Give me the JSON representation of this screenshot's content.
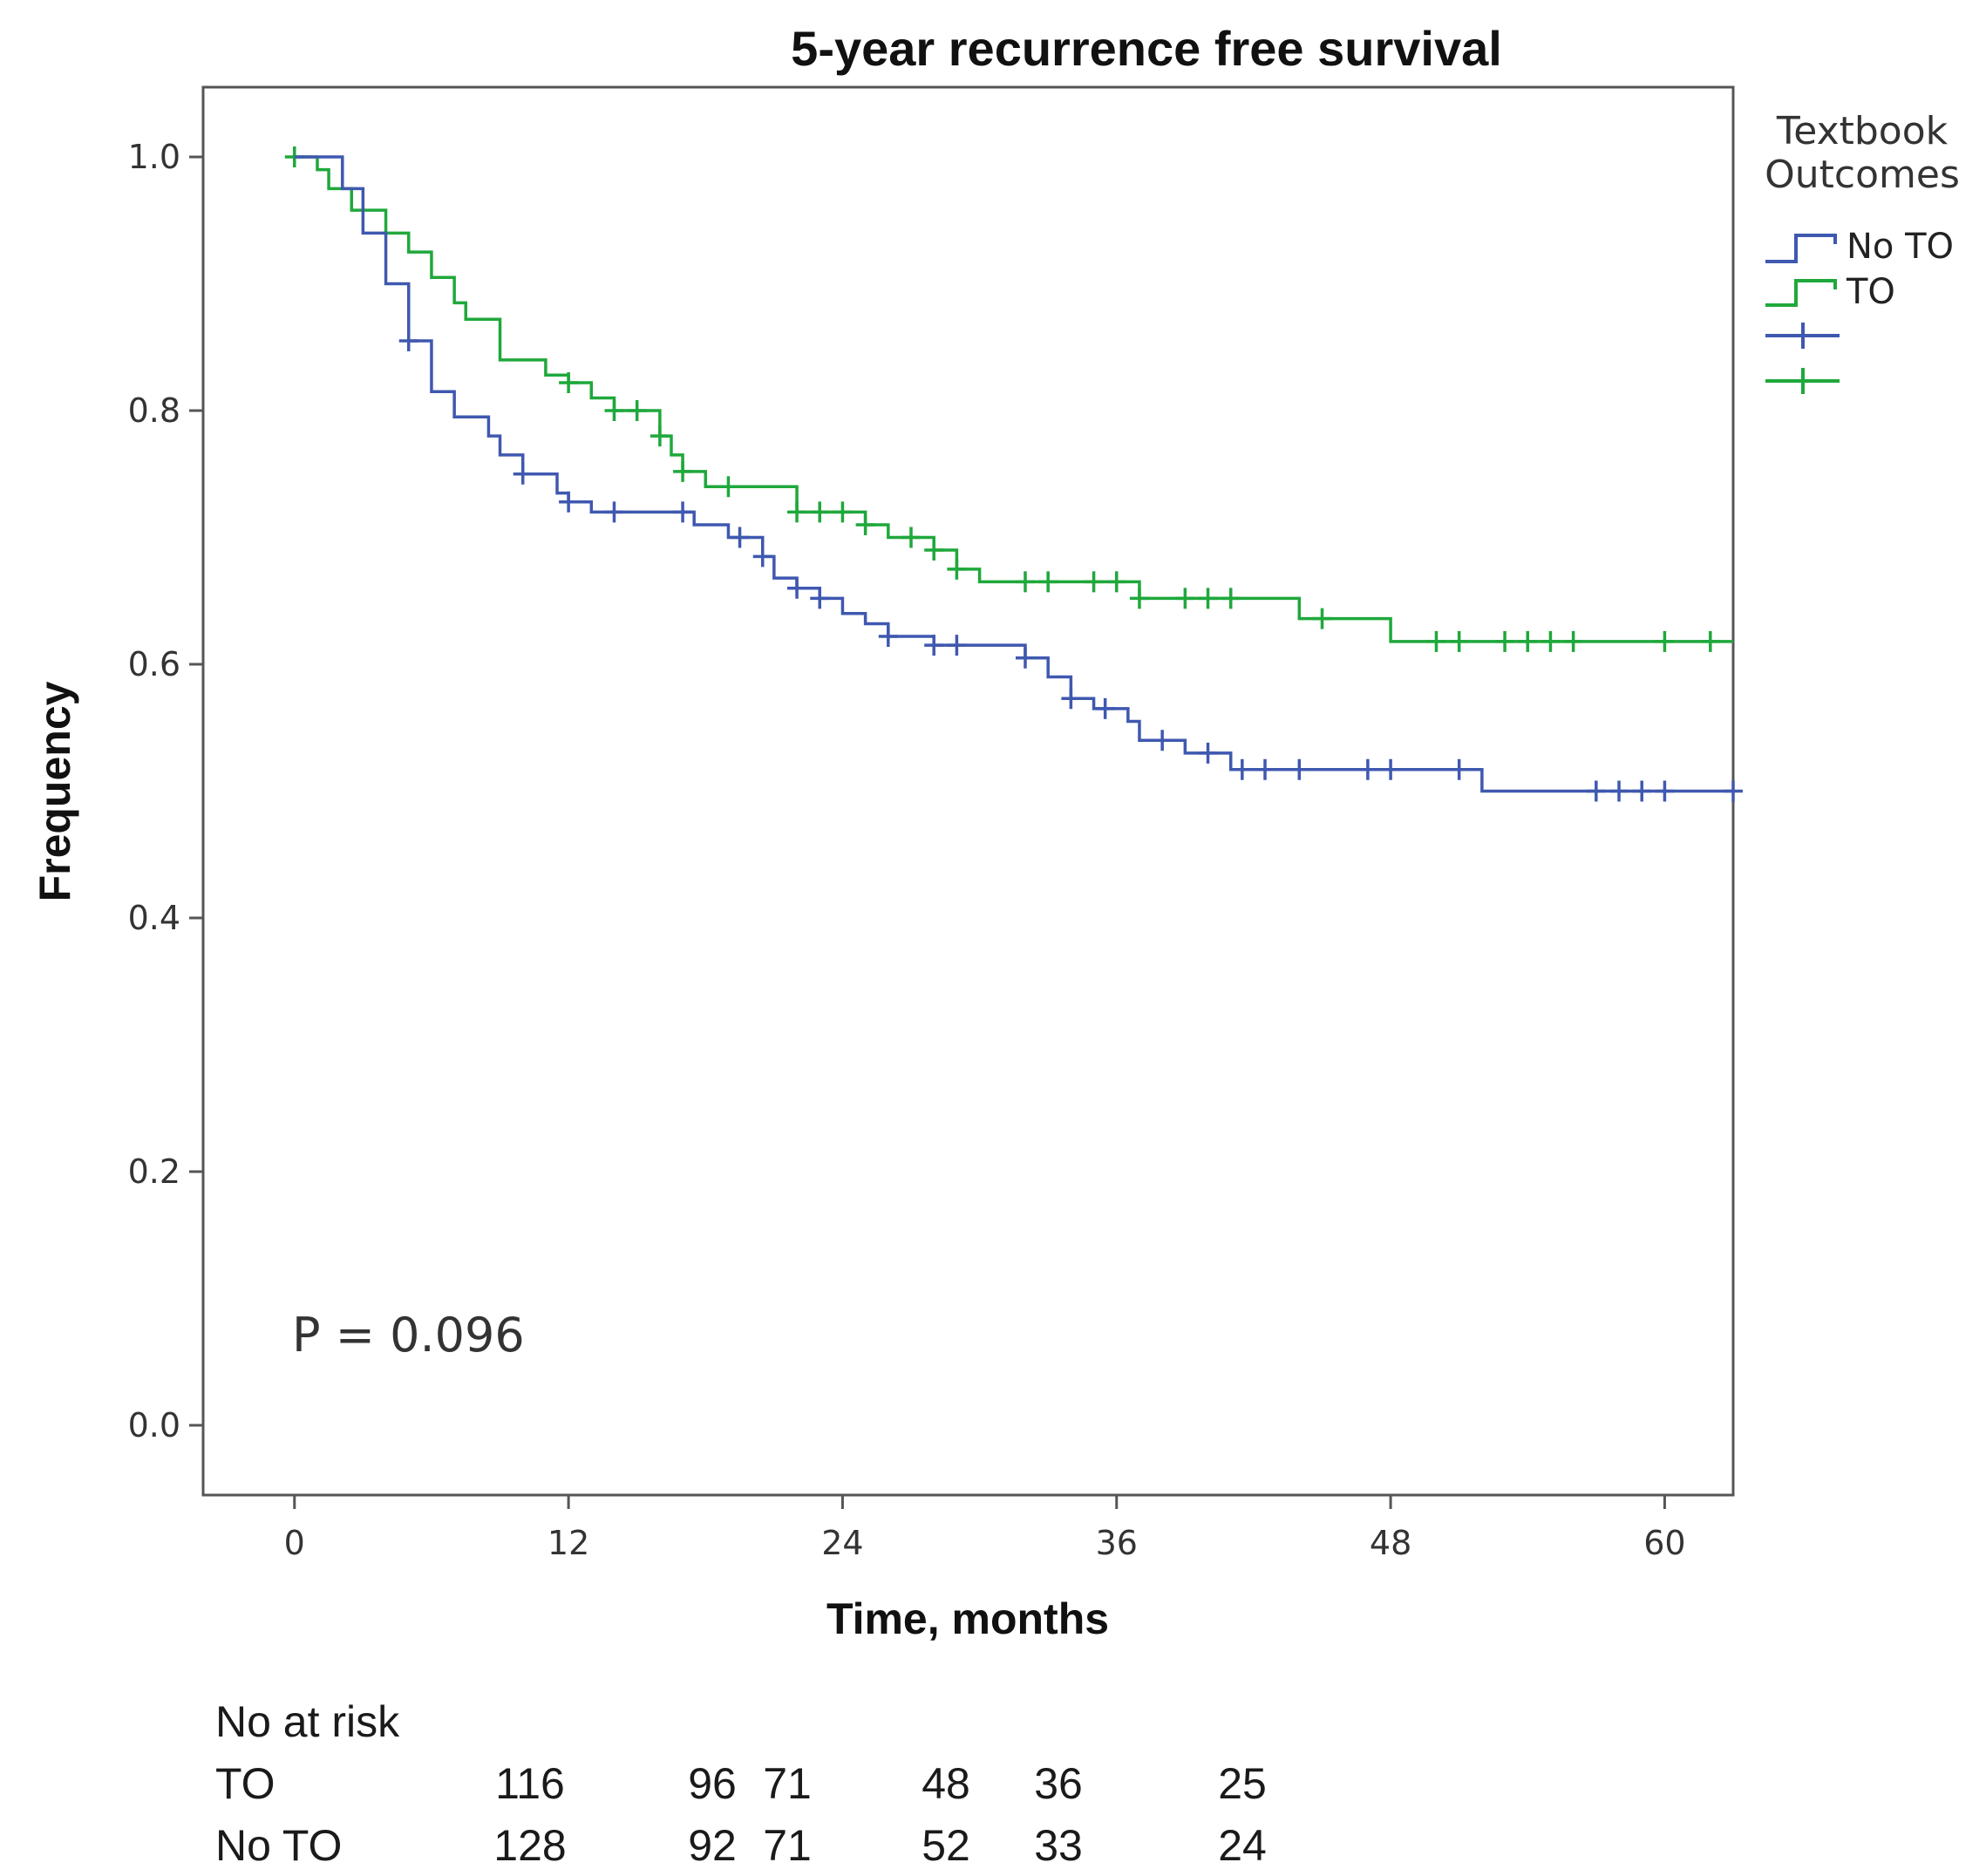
{
  "chart_data": {
    "type": "line",
    "subtype": "kaplan-meier step curves",
    "title": "5-year recurrence free survival",
    "xlabel": "Time, months",
    "ylabel": "Frequency",
    "xlim": [
      -4,
      63
    ],
    "ylim": [
      -0.055,
      1.055
    ],
    "xticks": [
      0,
      12,
      24,
      36,
      48,
      60
    ],
    "yticks": [
      0.0,
      0.2,
      0.4,
      0.6,
      0.8,
      1.0
    ],
    "xtick_labels": [
      "0",
      "12",
      "24",
      "36",
      "48",
      "60"
    ],
    "ytick_labels": [
      "0.0",
      "0.2",
      "0.4",
      "0.6",
      "0.8",
      "1.0"
    ],
    "legend": {
      "title_lines": [
        "Textbook",
        "Outcomes"
      ],
      "position": "right",
      "entries": [
        "No TO",
        "TO",
        "",
        ""
      ]
    },
    "annotation": "P = 0.096",
    "series": [
      {
        "name": "No TO",
        "color": "#3f58b0",
        "steps": [
          [
            0,
            1.0
          ],
          [
            2.1,
            0.975
          ],
          [
            3,
            0.94
          ],
          [
            4,
            0.9
          ],
          [
            5,
            0.855
          ],
          [
            6,
            0.815
          ],
          [
            7,
            0.795
          ],
          [
            8.5,
            0.78
          ],
          [
            9,
            0.765
          ],
          [
            10,
            0.75
          ],
          [
            11.5,
            0.735
          ],
          [
            12,
            0.728
          ],
          [
            13,
            0.72
          ],
          [
            17.5,
            0.71
          ],
          [
            19,
            0.7
          ],
          [
            20.5,
            0.685
          ],
          [
            21,
            0.668
          ],
          [
            22,
            0.66
          ],
          [
            23,
            0.652
          ],
          [
            24,
            0.64
          ],
          [
            25,
            0.632
          ],
          [
            26,
            0.622
          ],
          [
            28,
            0.615
          ],
          [
            32,
            0.605
          ],
          [
            33,
            0.59
          ],
          [
            34,
            0.573
          ],
          [
            35,
            0.565
          ],
          [
            36.5,
            0.555
          ],
          [
            37,
            0.54
          ],
          [
            39,
            0.53
          ],
          [
            41,
            0.517
          ],
          [
            52,
            0.5
          ],
          [
            63,
            0.5
          ]
        ],
        "censored": [
          5,
          10,
          12,
          14,
          17,
          19.5,
          20.5,
          22,
          23,
          26,
          28,
          29,
          32,
          34,
          35.5,
          38,
          40,
          41.5,
          42.5,
          44,
          47,
          48,
          51,
          57,
          58,
          59,
          60,
          63
        ]
      },
      {
        "name": "TO",
        "color": "#1fa83b",
        "steps": [
          [
            0,
            1.0
          ],
          [
            1,
            0.99
          ],
          [
            1.5,
            0.975
          ],
          [
            2.5,
            0.958
          ],
          [
            4,
            0.94
          ],
          [
            5,
            0.925
          ],
          [
            6,
            0.905
          ],
          [
            7,
            0.885
          ],
          [
            7.5,
            0.872
          ],
          [
            9,
            0.86
          ],
          [
            9,
            0.84
          ],
          [
            11,
            0.828
          ],
          [
            12,
            0.822
          ],
          [
            13,
            0.81
          ],
          [
            14,
            0.8
          ],
          [
            16,
            0.78
          ],
          [
            16.5,
            0.765
          ],
          [
            17,
            0.752
          ],
          [
            18,
            0.74
          ],
          [
            22,
            0.72
          ],
          [
            25,
            0.71
          ],
          [
            26,
            0.7
          ],
          [
            28,
            0.69
          ],
          [
            29,
            0.675
          ],
          [
            30,
            0.665
          ],
          [
            37,
            0.652
          ],
          [
            44,
            0.636
          ],
          [
            48,
            0.618
          ],
          [
            63,
            0.618
          ]
        ],
        "censored": [
          0,
          12,
          14,
          15,
          16,
          17,
          19,
          22,
          23,
          24,
          25,
          27,
          28,
          29,
          32,
          33,
          35,
          36,
          37,
          39,
          40,
          41,
          45,
          50,
          51,
          53,
          54,
          55,
          56,
          60,
          62
        ]
      }
    ]
  },
  "risk_table": {
    "header": "No at risk",
    "rows": [
      {
        "label": "TO",
        "values": [
          "116",
          "96",
          "71",
          "48",
          "36",
          "25"
        ]
      },
      {
        "label": "No TO",
        "values": [
          "128",
          "92",
          "71",
          "52",
          "33",
          "24"
        ]
      }
    ]
  }
}
